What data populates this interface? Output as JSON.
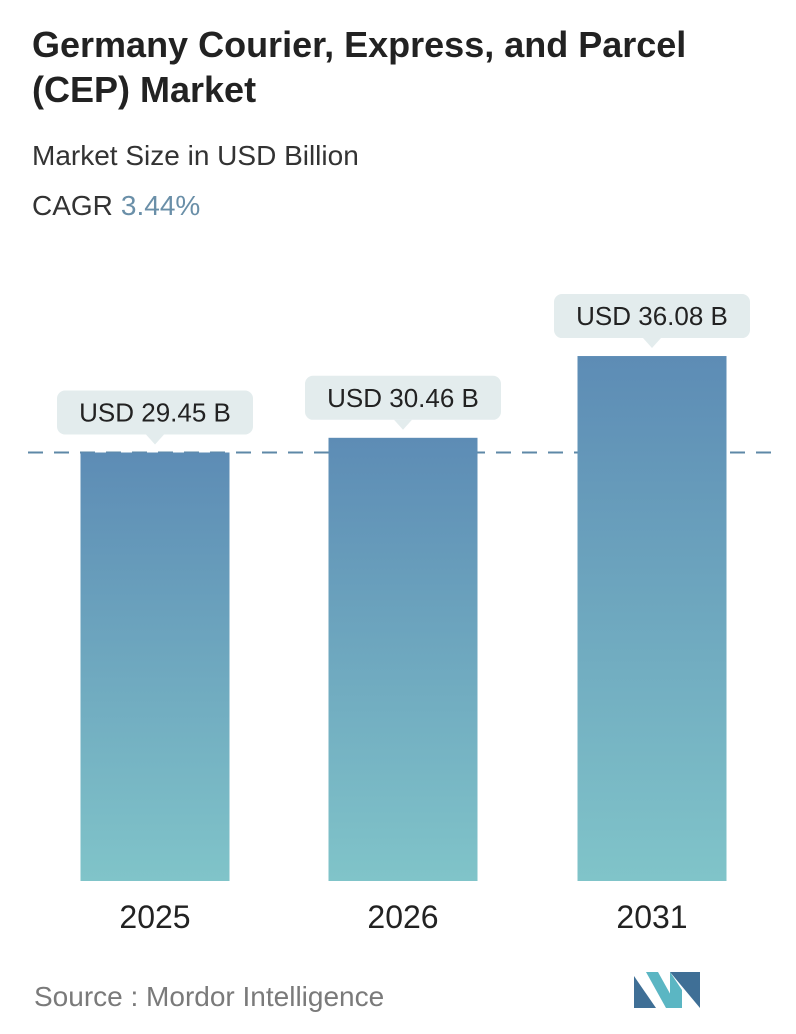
{
  "header": {
    "title": "Germany Courier, Express, and Parcel (CEP) Market",
    "subtitle": "Market Size in USD Billion",
    "cagr_label": "CAGR",
    "cagr_value": "3.44%"
  },
  "chart_data": {
    "type": "bar",
    "categories": [
      "2025",
      "2026",
      "2031"
    ],
    "values": [
      29.45,
      30.46,
      36.08
    ],
    "value_labels": [
      "USD 29.45 B",
      "USD 30.46 B",
      "USD 36.08 B"
    ],
    "ylabel": "",
    "xlabel": "",
    "grid": false,
    "reference_line": 29.45,
    "colors": {
      "bar_top": "#5d8cb5",
      "bar_bottom": "#80c4c9",
      "callout": "#e3eced",
      "reference_line": "#5e88a7"
    }
  },
  "footer": {
    "source": "Source :  Mordor Intelligence",
    "logo_icon": "mordor-intelligence-logo-icon",
    "logo_colors": [
      "#3f6f96",
      "#5bb6c3"
    ]
  }
}
